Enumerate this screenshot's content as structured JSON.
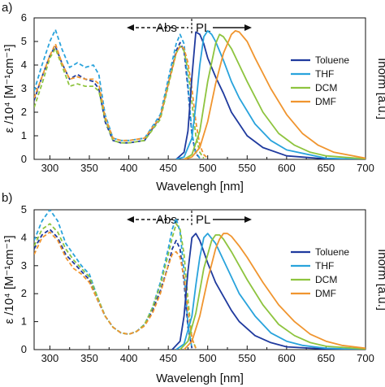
{
  "colors": {
    "Toluene": "#1f3a9e",
    "THF": "#29a3dc",
    "DCM": "#8ec43f",
    "DMF": "#f0952f"
  },
  "chart_data": [
    {
      "type": "line",
      "panel_label": "a)",
      "xlabel": "Wavelengh [nm]",
      "ylabel_left": "ε /10⁴ [M⁻¹cm⁻¹]",
      "ylabel_right": "Inorm [a.u.]",
      "xlim": [
        280,
        700
      ],
      "ylim": [
        0,
        6
      ],
      "xticks": [
        "300",
        "350",
        "400",
        "450",
        "500",
        "550",
        "600",
        "650",
        "700"
      ],
      "yticks": [
        "0",
        "1",
        "2",
        "3",
        "4",
        "5",
        "6"
      ],
      "annotation_abs": "Abs",
      "annotation_pl": "PL",
      "legend_position": "right",
      "legend": [
        "Toluene",
        "THF",
        "DCM",
        "DMF"
      ],
      "absorption": [
        {
          "name": "Toluene",
          "x": [
            280,
            290,
            300,
            307,
            315,
            325,
            335,
            345,
            355,
            362,
            370,
            380,
            390,
            400,
            420,
            440,
            450,
            460,
            465,
            470,
            475,
            480,
            485,
            490
          ],
          "y": [
            2.5,
            3.5,
            4.4,
            4.8,
            4.1,
            3.4,
            3.6,
            3.4,
            3.3,
            3.0,
            1.6,
            0.8,
            0.7,
            0.7,
            0.8,
            1.8,
            3.2,
            4.6,
            4.95,
            4.6,
            3.0,
            1.0,
            0.25,
            0.05
          ]
        },
        {
          "name": "THF",
          "x": [
            280,
            290,
            300,
            307,
            315,
            325,
            335,
            345,
            355,
            362,
            370,
            380,
            390,
            400,
            420,
            440,
            450,
            460,
            465,
            470,
            475,
            480,
            485,
            490
          ],
          "y": [
            2.9,
            4.0,
            5.0,
            5.5,
            4.7,
            3.9,
            4.1,
            3.9,
            4.0,
            3.6,
            1.9,
            0.9,
            0.8,
            0.8,
            0.9,
            1.9,
            3.4,
            4.9,
            5.3,
            4.9,
            3.2,
            1.1,
            0.3,
            0.05
          ]
        },
        {
          "name": "DCM",
          "x": [
            280,
            290,
            300,
            307,
            315,
            325,
            335,
            345,
            355,
            362,
            370,
            380,
            390,
            400,
            420,
            440,
            450,
            460,
            465,
            470,
            475,
            480,
            485,
            490,
            495
          ],
          "y": [
            2.2,
            3.2,
            4.3,
            4.7,
            4.0,
            3.1,
            3.2,
            3.1,
            3.1,
            2.9,
            1.7,
            0.8,
            0.7,
            0.7,
            0.8,
            1.7,
            3.1,
            4.5,
            4.8,
            4.6,
            3.8,
            2.4,
            1.0,
            0.3,
            0.05
          ]
        },
        {
          "name": "DMF",
          "x": [
            280,
            290,
            300,
            307,
            315,
            325,
            335,
            345,
            355,
            362,
            370,
            380,
            390,
            400,
            420,
            440,
            450,
            460,
            465,
            470,
            475,
            480,
            485,
            490,
            495,
            500
          ],
          "y": [
            2.6,
            3.5,
            4.4,
            4.9,
            4.1,
            3.4,
            3.5,
            3.4,
            3.4,
            3.2,
            1.8,
            0.9,
            0.8,
            0.8,
            0.9,
            1.8,
            3.2,
            4.5,
            4.8,
            4.7,
            4.1,
            3.0,
            1.6,
            0.6,
            0.2,
            0.05
          ]
        }
      ],
      "emission": [
        {
          "name": "Toluene",
          "x": [
            460,
            470,
            475,
            480,
            485,
            490,
            495,
            500,
            510,
            520,
            530,
            550,
            570,
            600,
            650,
            700
          ],
          "y": [
            0.0,
            0.3,
            1.2,
            3.5,
            5.4,
            5.3,
            4.9,
            4.3,
            3.5,
            2.8,
            2.0,
            1.0,
            0.5,
            0.15,
            0.02,
            0.0
          ]
        },
        {
          "name": "THF",
          "x": [
            460,
            470,
            480,
            485,
            490,
            495,
            500,
            505,
            510,
            520,
            530,
            540,
            560,
            580,
            600,
            650,
            700
          ],
          "y": [
            0.0,
            0.1,
            0.9,
            2.3,
            4.0,
            5.2,
            5.45,
            5.3,
            5.0,
            4.2,
            3.3,
            2.6,
            1.5,
            0.8,
            0.4,
            0.05,
            0.0
          ]
        },
        {
          "name": "DCM",
          "x": [
            470,
            480,
            490,
            500,
            510,
            515,
            520,
            530,
            540,
            550,
            570,
            590,
            610,
            630,
            650,
            700
          ],
          "y": [
            0.0,
            0.2,
            1.2,
            3.3,
            4.9,
            5.3,
            5.2,
            4.7,
            4.0,
            3.3,
            2.0,
            1.1,
            0.6,
            0.3,
            0.15,
            0.02
          ]
        },
        {
          "name": "DMF",
          "x": [
            470,
            480,
            490,
            500,
            510,
            520,
            530,
            535,
            540,
            550,
            560,
            580,
            600,
            620,
            640,
            660,
            700
          ],
          "y": [
            0.0,
            0.1,
            0.5,
            1.6,
            3.2,
            4.5,
            5.3,
            5.45,
            5.4,
            5.0,
            4.3,
            3.0,
            1.9,
            1.1,
            0.6,
            0.3,
            0.05
          ]
        }
      ]
    },
    {
      "type": "line",
      "panel_label": "b)",
      "xlabel": "Wavelengh [nm]",
      "ylabel_left": "ε /10⁴ [M⁻¹cm⁻¹]",
      "ylabel_right": "Inorm [a.u.]",
      "xlim": [
        280,
        700
      ],
      "ylim": [
        0,
        5
      ],
      "xticks": [
        "300",
        "350",
        "400",
        "450",
        "500",
        "550",
        "600",
        "650",
        "700"
      ],
      "yticks": [
        "0",
        "1",
        "2",
        "3",
        "4",
        "5"
      ],
      "annotation_abs": "Abs",
      "annotation_pl": "PL",
      "legend_position": "right",
      "legend": [
        "Toluene",
        "THF",
        "DCM",
        "DMF"
      ],
      "absorption": [
        {
          "name": "Toluene",
          "x": [
            280,
            290,
            300,
            310,
            320,
            330,
            340,
            350,
            360,
            370,
            380,
            390,
            400,
            410,
            420,
            430,
            440,
            450,
            455,
            460,
            465,
            470,
            475,
            480
          ],
          "y": [
            3.6,
            4.1,
            4.3,
            4.0,
            3.4,
            3.1,
            2.8,
            2.5,
            1.8,
            1.2,
            0.8,
            0.6,
            0.55,
            0.65,
            0.9,
            1.4,
            2.1,
            3.0,
            3.6,
            3.9,
            3.6,
            2.4,
            0.8,
            0.05
          ]
        },
        {
          "name": "THF",
          "x": [
            280,
            290,
            300,
            310,
            320,
            330,
            340,
            350,
            360,
            370,
            380,
            390,
            400,
            410,
            420,
            430,
            440,
            450,
            455,
            460,
            465,
            470,
            475,
            480
          ],
          "y": [
            3.9,
            4.6,
            5.0,
            4.6,
            3.8,
            3.4,
            3.0,
            2.7,
            1.9,
            1.2,
            0.8,
            0.6,
            0.55,
            0.65,
            0.9,
            1.5,
            2.4,
            3.6,
            4.3,
            4.7,
            4.2,
            2.8,
            0.9,
            0.05
          ]
        },
        {
          "name": "DCM",
          "x": [
            280,
            290,
            300,
            310,
            320,
            330,
            340,
            350,
            360,
            370,
            380,
            390,
            400,
            410,
            420,
            430,
            440,
            450,
            455,
            460,
            465,
            470,
            475,
            480,
            485
          ],
          "y": [
            3.7,
            4.3,
            4.5,
            4.2,
            3.6,
            3.2,
            2.9,
            2.6,
            1.9,
            1.2,
            0.8,
            0.6,
            0.55,
            0.65,
            0.9,
            1.5,
            2.3,
            3.4,
            4.0,
            4.5,
            4.3,
            3.4,
            1.8,
            0.4,
            0.05
          ]
        },
        {
          "name": "DMF",
          "x": [
            280,
            290,
            300,
            310,
            320,
            330,
            340,
            350,
            360,
            370,
            380,
            390,
            400,
            410,
            420,
            430,
            440,
            450,
            455,
            460,
            465,
            470,
            475,
            480,
            485
          ],
          "y": [
            3.4,
            4.0,
            4.2,
            3.9,
            3.3,
            2.9,
            2.7,
            2.4,
            1.8,
            1.2,
            0.8,
            0.6,
            0.55,
            0.65,
            0.85,
            1.3,
            2.0,
            3.0,
            3.4,
            3.5,
            3.3,
            2.6,
            1.4,
            0.4,
            0.05
          ]
        }
      ],
      "emission": [
        {
          "name": "Toluene",
          "x": [
            455,
            465,
            470,
            475,
            480,
            485,
            490,
            495,
            500,
            510,
            520,
            530,
            540,
            560,
            580,
            600,
            650,
            700
          ],
          "y": [
            0.0,
            0.3,
            1.2,
            2.8,
            4.0,
            4.15,
            3.9,
            3.5,
            3.1,
            2.4,
            1.9,
            1.4,
            1.0,
            0.5,
            0.25,
            0.1,
            0.02,
            0.0
          ]
        },
        {
          "name": "THF",
          "x": [
            460,
            470,
            480,
            485,
            490,
            495,
            500,
            510,
            520,
            530,
            540,
            560,
            580,
            600,
            620,
            650,
            700
          ],
          "y": [
            0.0,
            0.2,
            1.2,
            2.3,
            3.3,
            4.0,
            4.15,
            3.8,
            3.2,
            2.6,
            2.0,
            1.2,
            0.6,
            0.3,
            0.15,
            0.05,
            0.0
          ]
        },
        {
          "name": "DCM",
          "x": [
            465,
            475,
            485,
            495,
            505,
            510,
            515,
            520,
            530,
            540,
            550,
            570,
            590,
            610,
            630,
            650,
            700
          ],
          "y": [
            0.0,
            0.3,
            1.3,
            2.9,
            3.9,
            4.1,
            4.1,
            3.95,
            3.5,
            3.0,
            2.5,
            1.6,
            0.9,
            0.5,
            0.25,
            0.12,
            0.02
          ]
        },
        {
          "name": "DMF",
          "x": [
            470,
            480,
            490,
            500,
            510,
            515,
            520,
            525,
            530,
            540,
            550,
            570,
            590,
            610,
            630,
            650,
            670,
            700
          ],
          "y": [
            0.0,
            0.3,
            1.2,
            2.5,
            3.6,
            3.95,
            4.15,
            4.15,
            4.05,
            3.7,
            3.3,
            2.4,
            1.6,
            1.0,
            0.55,
            0.3,
            0.15,
            0.05
          ]
        }
      ]
    }
  ]
}
